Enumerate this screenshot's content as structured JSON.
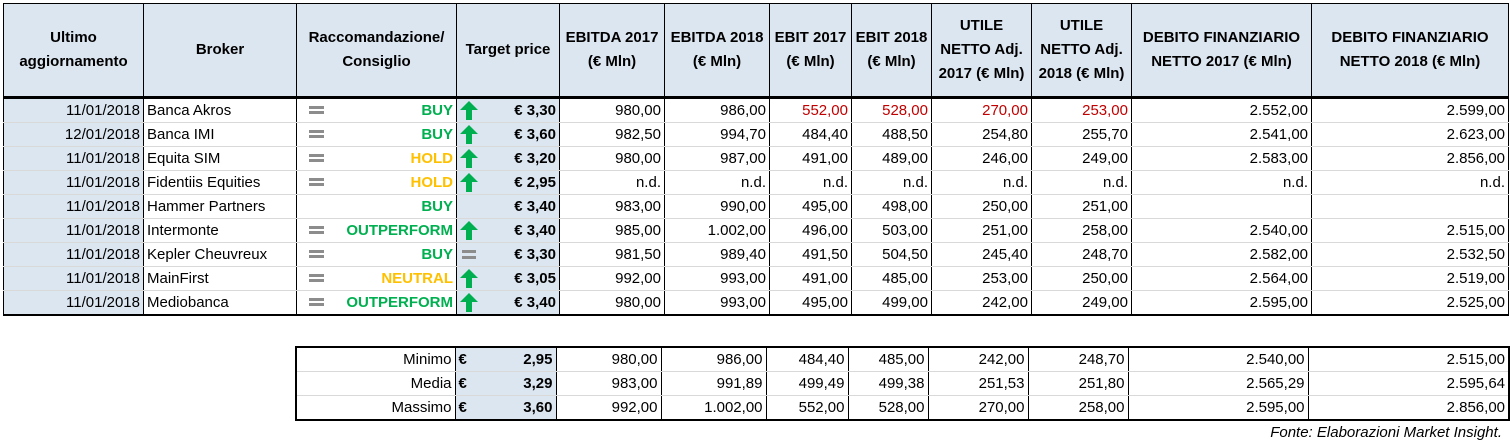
{
  "headers": {
    "last_update": "Ultimo aggiornamento",
    "broker": "Broker",
    "recommendation": "Raccomandazione/ Consiglio",
    "target_price": "Target price",
    "ebitda_2017": "EBITDA 2017 (€ Mln)",
    "ebitda_2018": "EBITDA 2018 (€ Mln)",
    "ebit_2017": "EBIT 2017 (€ Mln)",
    "ebit_2018": "EBIT 2018 (€ Mln)",
    "utile_2017": "UTILE NETTO Adj. 2017 (€ Mln)",
    "utile_2018": "UTILE NETTO Adj. 2018 (€ Mln)",
    "debito_2017": "DEBITO FINANZIARIO NETTO 2017 (€ Mln)",
    "debito_2018": "DEBITO FINANZIARIO NETTO 2018 (€ Mln)"
  },
  "rows": [
    {
      "date": "11/01/2018",
      "broker": "Banca Akros",
      "rec": "BUY",
      "trend": "up",
      "tp": "€ 3,30",
      "ebitda17": "980,00",
      "ebitda18": "986,00",
      "ebit17": "552,00",
      "ebit18": "528,00",
      "utile17": "270,00",
      "utile18": "253,00",
      "debito17": "2.552,00",
      "debito18": "2.599,00"
    },
    {
      "date": "12/01/2018",
      "broker": "Banca IMI",
      "rec": "BUY",
      "trend": "up",
      "tp": "€ 3,60",
      "ebitda17": "982,50",
      "ebitda18": "994,70",
      "ebit17": "484,40",
      "ebit18": "488,50",
      "utile17": "254,80",
      "utile18": "255,70",
      "debito17": "2.541,00",
      "debito18": "2.623,00"
    },
    {
      "date": "11/01/2018",
      "broker": "Equita SIM",
      "rec": "HOLD",
      "trend": "up",
      "tp": "€ 3,20",
      "ebitda17": "980,00",
      "ebitda18": "987,00",
      "ebit17": "491,00",
      "ebit18": "489,00",
      "utile17": "246,00",
      "utile18": "249,00",
      "debito17": "2.583,00",
      "debito18": "2.856,00"
    },
    {
      "date": "11/01/2018",
      "broker": "Fidentiis Equities",
      "rec": "HOLD",
      "trend": "up",
      "tp": "€ 2,95",
      "ebitda17": "n.d.",
      "ebitda18": "n.d.",
      "ebit17": "n.d.",
      "ebit18": "n.d.",
      "utile17": "n.d.",
      "utile18": "n.d.",
      "debito17": "n.d.",
      "debito18": "n.d."
    },
    {
      "date": "11/01/2018",
      "broker": "Hammer Partners",
      "rec": "BUY",
      "trend": "none",
      "tp": "€ 3,40",
      "ebitda17": "983,00",
      "ebitda18": "990,00",
      "ebit17": "495,00",
      "ebit18": "498,00",
      "utile17": "250,00",
      "utile18": "251,00",
      "debito17": "",
      "debito18": ""
    },
    {
      "date": "11/01/2018",
      "broker": "Intermonte",
      "rec": "OUTPERFORM",
      "trend": "up",
      "tp": "€ 3,40",
      "ebitda17": "985,00",
      "ebitda18": "1.002,00",
      "ebit17": "496,00",
      "ebit18": "503,00",
      "utile17": "251,00",
      "utile18": "258,00",
      "debito17": "2.540,00",
      "debito18": "2.515,00"
    },
    {
      "date": "11/01/2018",
      "broker": "Kepler Cheuvreux",
      "rec": "BUY",
      "trend": "equal",
      "tp": "€ 3,30",
      "ebitda17": "981,50",
      "ebitda18": "989,40",
      "ebit17": "491,50",
      "ebit18": "504,50",
      "utile17": "245,40",
      "utile18": "248,70",
      "debito17": "2.582,00",
      "debito18": "2.532,50"
    },
    {
      "date": "11/01/2018",
      "broker": "MainFirst",
      "rec": "NEUTRAL",
      "trend": "up",
      "tp": "€ 3,05",
      "ebitda17": "992,00",
      "ebitda18": "993,00",
      "ebit17": "491,00",
      "ebit18": "485,00",
      "utile17": "253,00",
      "utile18": "250,00",
      "debito17": "2.564,00",
      "debito18": "2.519,00"
    },
    {
      "date": "11/01/2018",
      "broker": "Mediobanca",
      "rec": "OUTPERFORM",
      "trend": "up",
      "tp": "€ 3,40",
      "ebitda17": "980,00",
      "ebitda18": "993,00",
      "ebit17": "495,00",
      "ebit18": "499,00",
      "utile17": "242,00",
      "utile18": "249,00",
      "debito17": "2.595,00",
      "debito18": "2.525,00"
    }
  ],
  "summary": [
    {
      "label": "Minimo",
      "eur": "€",
      "tp": "2,95",
      "ebitda17": "980,00",
      "ebitda18": "986,00",
      "ebit17": "484,40",
      "ebit18": "485,00",
      "utile17": "242,00",
      "utile18": "248,70",
      "debito17": "2.540,00",
      "debito18": "2.515,00"
    },
    {
      "label": "Media",
      "eur": "€",
      "tp": "3,29",
      "ebitda17": "983,00",
      "ebitda18": "991,89",
      "ebit17": "499,49",
      "ebit18": "499,38",
      "utile17": "251,53",
      "utile18": "251,80",
      "debito17": "2.565,29",
      "debito18": "2.595,64"
    },
    {
      "label": "Massimo",
      "eur": "€",
      "tp": "3,60",
      "ebitda17": "992,00",
      "ebitda18": "1.002,00",
      "ebit17": "552,00",
      "ebit18": "528,00",
      "utile17": "270,00",
      "utile18": "258,00",
      "debito17": "2.595,00",
      "debito18": "2.856,00"
    }
  ],
  "source": "Fonte: Elaborazioni Market Insight.",
  "colors": {
    "header_bg": "#dce6f1",
    "buy": "#00b050",
    "hold": "#ffc000",
    "arrow_up": "#00b050",
    "highlight_red": "#c00000",
    "equal_gray": "#8c8c8c"
  }
}
